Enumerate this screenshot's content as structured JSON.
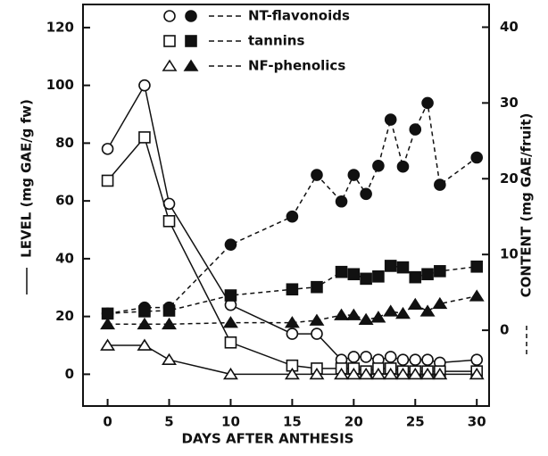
{
  "chart_data": {
    "type": "line",
    "xlabel": "DAYS AFTER ANTHESIS",
    "ylabel": "LEVEL (mg GAE/g fw)",
    "y2label": "CONTENT (mg GAE/fruit)",
    "x": [
      0,
      3,
      5,
      10,
      15,
      17,
      19,
      20,
      21,
      22,
      23,
      24,
      25,
      26,
      27,
      30
    ],
    "xlim": [
      -2,
      31
    ],
    "xticks": [
      0,
      5,
      10,
      15,
      20,
      25,
      30
    ],
    "ylim": [
      -11,
      128
    ],
    "yticks": [
      0,
      20,
      40,
      60,
      80,
      100,
      120
    ],
    "y2lim": [
      -10,
      43
    ],
    "y2ticks": [
      0,
      10,
      20,
      30,
      40
    ],
    "color": "#111111",
    "series": [
      {
        "name": "NT-flavonoids",
        "marker": "circle",
        "values": [
          78,
          100,
          59,
          24,
          14,
          14,
          5,
          6,
          6,
          5,
          6,
          5,
          5,
          5,
          4,
          5
        ],
        "content": [
          2.2,
          3,
          3,
          11.3,
          15,
          20.5,
          17,
          20.5,
          18,
          21.7,
          27.8,
          21.6,
          26.5,
          30,
          19.2,
          22.8
        ]
      },
      {
        "name": "tannins",
        "marker": "square",
        "values": [
          67,
          82,
          53,
          11,
          3,
          2,
          2,
          2,
          1,
          2,
          2,
          1,
          1,
          1,
          1,
          1
        ],
        "content": [
          2.2,
          2.5,
          2.6,
          4.6,
          5.4,
          5.7,
          7.7,
          7.4,
          6.8,
          7.1,
          8.5,
          8.3,
          7,
          7.4,
          7.8,
          8.4
        ]
      },
      {
        "name": "NF-phenolics",
        "marker": "triangle",
        "values": [
          10,
          10,
          5,
          0,
          0,
          0,
          0,
          0,
          0,
          0,
          0,
          0,
          0,
          0,
          0,
          0
        ],
        "content": [
          0.8,
          0.8,
          0.8,
          1,
          1,
          1.3,
          2,
          2,
          1.4,
          1.7,
          2.5,
          2.2,
          3.4,
          2.5,
          3.5,
          4.5
        ]
      }
    ]
  }
}
